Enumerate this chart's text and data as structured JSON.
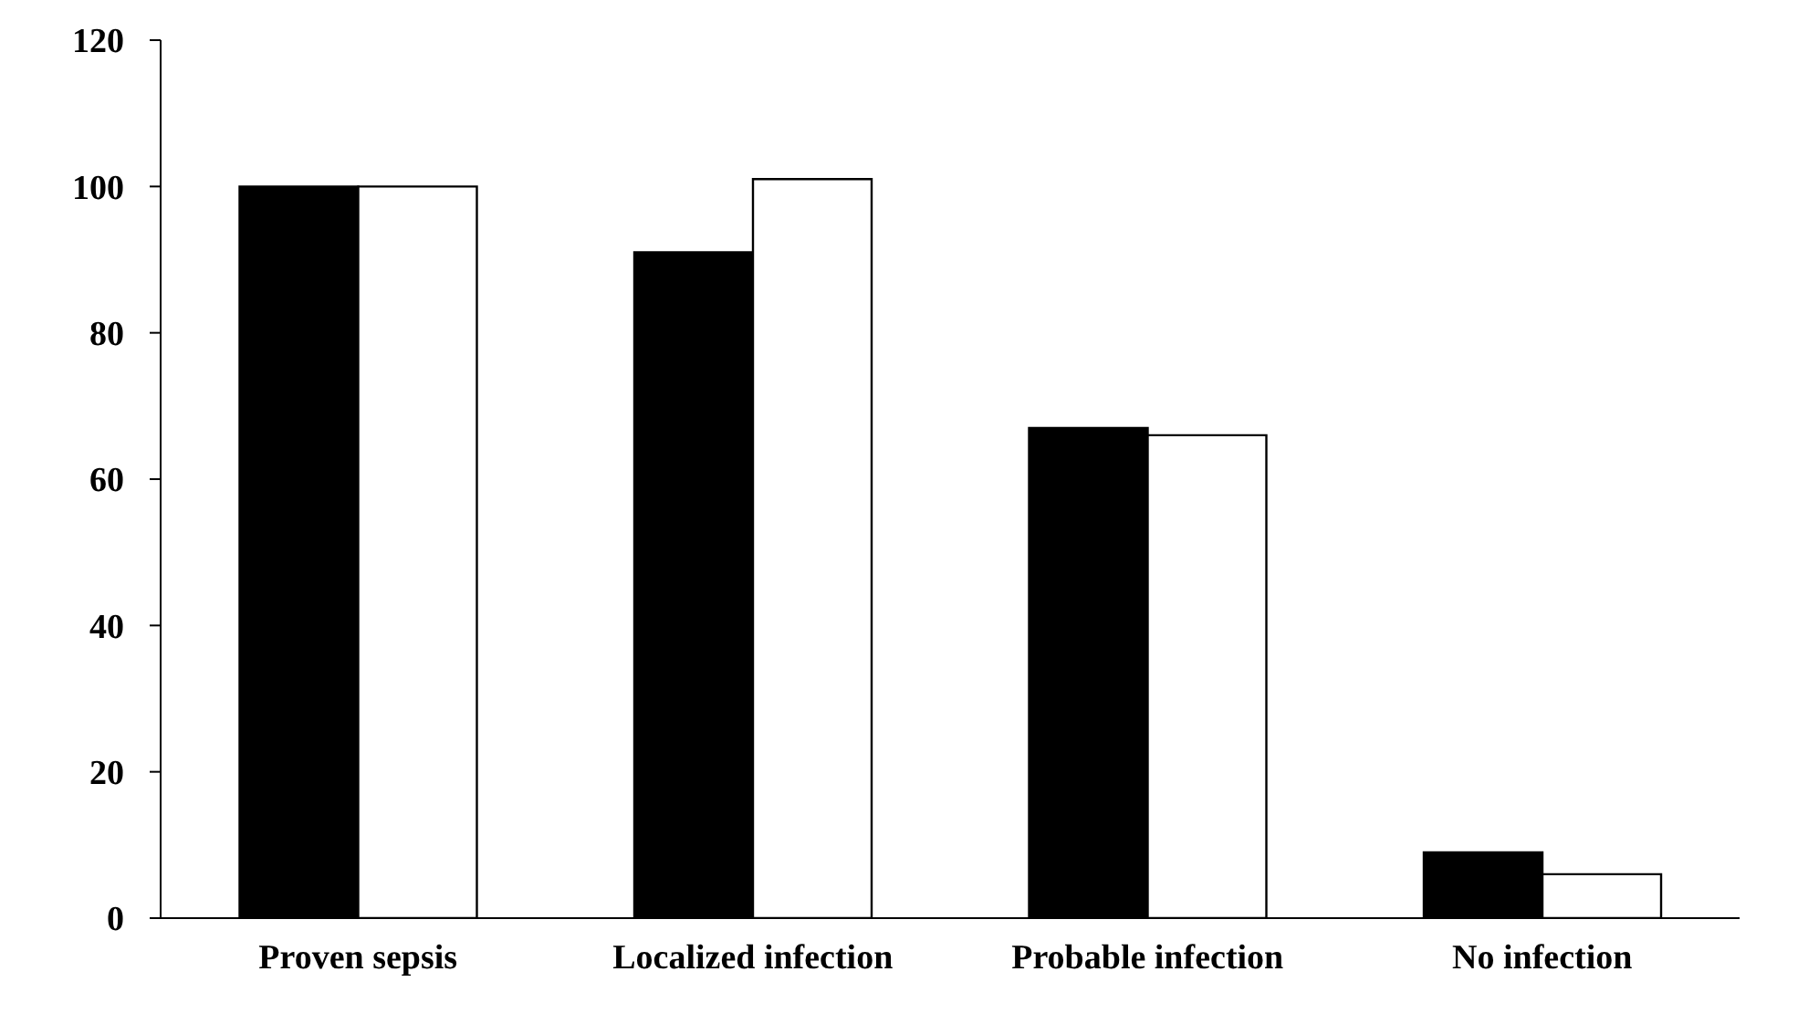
{
  "chart_data": {
    "type": "bar",
    "categories": [
      "Proven sepsis",
      "Localized infection",
      "Probable infection",
      "No infection"
    ],
    "series": [
      {
        "color": "#000000",
        "values": [
          100,
          91,
          67,
          9
        ]
      },
      {
        "color": "#ffffff",
        "values": [
          100,
          101,
          66,
          6
        ]
      }
    ],
    "ylim": [
      0,
      120
    ],
    "yticks": [
      0,
      20,
      40,
      60,
      80,
      100,
      120
    ],
    "grid": false,
    "legend": false
  }
}
